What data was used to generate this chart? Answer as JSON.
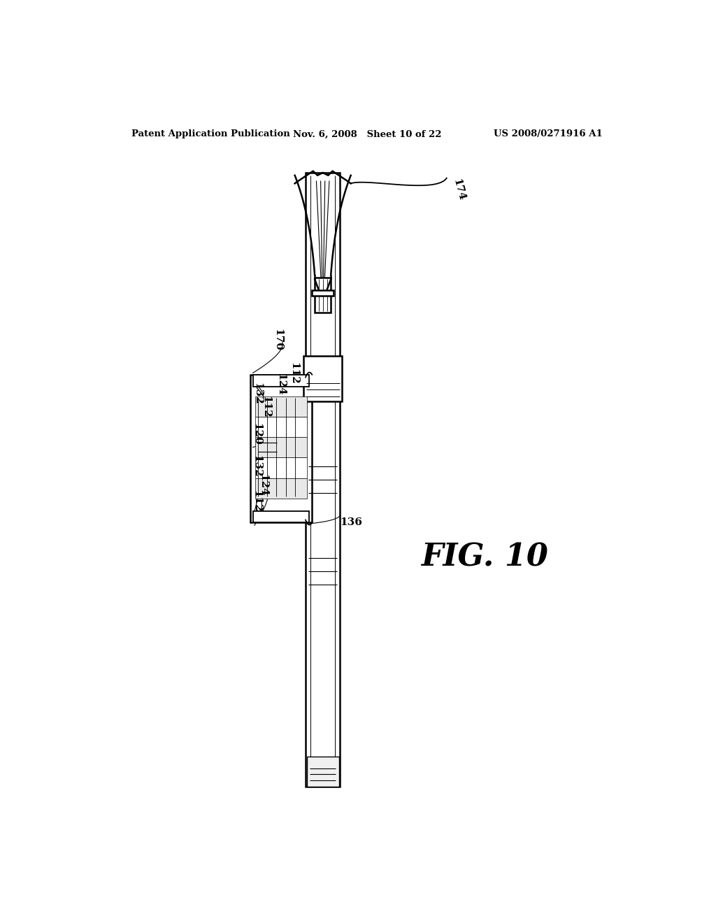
{
  "background_color": "#ffffff",
  "header_left": "Patent Application Publication",
  "header_middle": "Nov. 6, 2008   Sheet 10 of 22",
  "header_right": "US 2008/0271916 A1",
  "figure_label": "FIG. 10"
}
